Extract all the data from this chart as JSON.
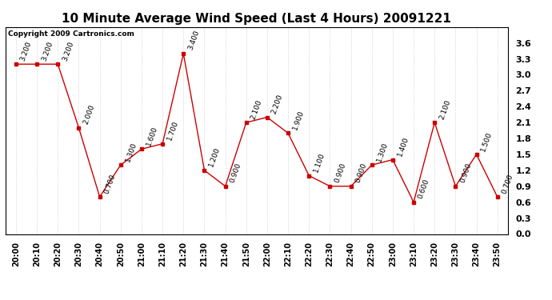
{
  "title": "10 Minute Average Wind Speed (Last 4 Hours) 20091221",
  "copyright": "Copyright 2009 Cartronics.com",
  "x_labels": [
    "20:00",
    "20:10",
    "20:20",
    "20:30",
    "20:40",
    "20:50",
    "21:00",
    "21:10",
    "21:20",
    "21:30",
    "21:40",
    "21:50",
    "22:00",
    "22:10",
    "22:20",
    "22:30",
    "22:40",
    "22:50",
    "23:00",
    "23:10",
    "23:20",
    "23:30",
    "23:40",
    "23:50"
  ],
  "y_values": [
    3.2,
    3.2,
    3.2,
    2.0,
    0.7,
    1.3,
    1.6,
    1.7,
    3.4,
    1.2,
    0.9,
    2.1,
    2.2,
    1.9,
    1.1,
    0.9,
    0.9,
    1.3,
    1.4,
    0.6,
    2.1,
    0.9,
    1.5,
    0.7
  ],
  "line_color": "#cc0000",
  "marker_color": "#cc0000",
  "bg_color": "#ffffff",
  "grid_color": "#bbbbbb",
  "ylim": [
    0.0,
    3.9
  ],
  "yticks": [
    0.0,
    0.3,
    0.6,
    0.9,
    1.2,
    1.5,
    1.8,
    2.1,
    2.4,
    2.7,
    3.0,
    3.3,
    3.6
  ],
  "title_fontsize": 11,
  "label_fontsize": 7,
  "annotation_fontsize": 6.5,
  "copyright_fontsize": 6.5
}
